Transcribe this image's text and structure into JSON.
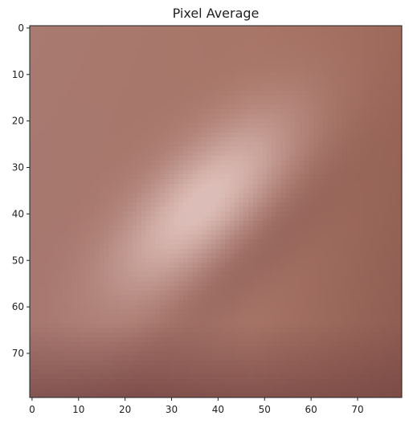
{
  "chart_data": {
    "type": "heatmap",
    "title": "Pixel Average",
    "xlabel": "",
    "ylabel": "",
    "xlim": [
      -0.5,
      79.5
    ],
    "ylim": [
      79.5,
      -0.5
    ],
    "grid": false,
    "x_ticks": [
      0,
      10,
      20,
      30,
      40,
      50,
      60,
      70
    ],
    "y_ticks": [
      0,
      10,
      20,
      30,
      40,
      50,
      60,
      70
    ],
    "x_tick_labels": [
      "0",
      "10",
      "20",
      "30",
      "40",
      "50",
      "60",
      "70"
    ],
    "y_tick_labels": [
      "0",
      "10",
      "20",
      "30",
      "40",
      "50",
      "60",
      "70"
    ],
    "image_size": [
      80,
      80
    ],
    "colors": {
      "background_top_left": "#a87a70",
      "top_right": "#a8705e",
      "bright_band": "#dcbcb6",
      "right_edge": "#7e4e48",
      "bottom_dark": "#6a3a3a",
      "left_edge": "#9e6a66"
    }
  }
}
